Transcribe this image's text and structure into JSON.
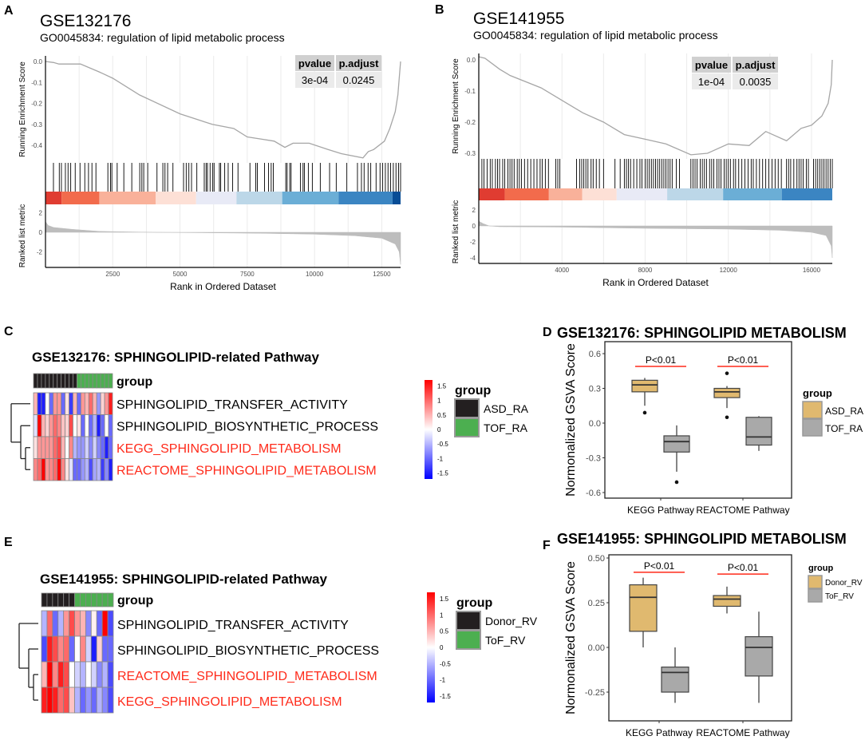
{
  "panel_labels": [
    "A",
    "B",
    "C",
    "D",
    "E",
    "F"
  ],
  "colors": {
    "hit": "#000000",
    "curve": "#a6a6a6",
    "metric_fill": "#bdbdbd",
    "grid": "#ebebeb",
    "highlight": "#ff2a1a",
    "gold": "#e0b96f",
    "gray_box": "#a9a9a9",
    "asd": "#231f20",
    "tof": "#4caf50"
  },
  "chart_data": [
    {
      "type": "line",
      "title": "GSE132176",
      "subtitle": "GO0045834: regulation of lipid metabolic process",
      "ylabel": "Running Enrichment Score",
      "ylabel2": "Ranked list metric",
      "xlabel": "Rank in Ordered Dataset",
      "xlim": [
        0,
        13200
      ],
      "xticks": [
        "2500",
        "5000",
        "7500",
        "10000",
        "12500"
      ],
      "yticks": [
        "0.0",
        "-0.1",
        "-0.2",
        "-0.3",
        "-0.4"
      ],
      "metric_ticks": [
        "2",
        "0",
        "-2"
      ],
      "table": {
        "headers": [
          "pvalue",
          "p.adjust"
        ],
        "values": [
          "3e-04",
          "0.0245"
        ]
      },
      "es_curve": {
        "x": [
          0,
          300,
          500,
          900,
          1300,
          2000,
          2500,
          3500,
          5000,
          6200,
          7000,
          7500,
          8000,
          8500,
          8900,
          9200,
          9800,
          10500,
          11000,
          11800,
          12000,
          12200,
          12600,
          12800,
          13000,
          13100,
          13200
        ],
        "y": [
          0,
          -0.005,
          -0.012,
          -0.012,
          -0.012,
          -0.05,
          -0.08,
          -0.16,
          -0.25,
          -0.3,
          -0.32,
          -0.36,
          -0.37,
          -0.38,
          -0.41,
          -0.39,
          -0.39,
          -0.42,
          -0.44,
          -0.46,
          -0.43,
          -0.42,
          -0.38,
          -0.32,
          -0.24,
          -0.16,
          0.0
        ]
      },
      "hits": [
        296,
        513,
        592,
        740,
        839,
        938,
        1105,
        1283,
        1461,
        1599,
        1727,
        1875,
        2319,
        2418,
        2468,
        2665,
        2912,
        3208,
        3504,
        3583,
        3652,
        3800,
        4145,
        4363,
        4442,
        4541,
        4738,
        5132,
        5231,
        5330,
        5429,
        5626,
        5902,
        5971,
        6021,
        6119,
        6218,
        6267,
        6465,
        6514,
        6662,
        6791,
        6958,
        7156,
        7600,
        7817,
        7876,
        8143,
        8291,
        8390,
        8468,
        8932,
        8982,
        9080,
        9130,
        9475,
        9574,
        9623,
        9771,
        9919,
        10215,
        10561,
        10808,
        11202,
        11597,
        11745,
        11844,
        11992,
        12091,
        12289,
        12436,
        12535,
        12634,
        12733,
        12831,
        12930,
        13029,
        13127,
        13200
      ],
      "metric_curve": {
        "x": [
          0,
          100,
          300,
          1000,
          2000,
          4000,
          6000,
          8000,
          10000,
          11500,
          12500,
          13000,
          13150,
          13200
        ],
        "y": [
          1.1,
          0.7,
          0.5,
          0.3,
          0.1,
          0,
          -0.05,
          -0.1,
          -0.2,
          -0.35,
          -0.6,
          -1.2,
          -2,
          -3.3
        ]
      },
      "color_bands": [
        {
          "end": 600,
          "color": "#e03c31"
        },
        {
          "end": 2000,
          "color": "#f26b4c"
        },
        {
          "end": 4100,
          "color": "#f9b19a"
        },
        {
          "end": 5600,
          "color": "#fde0d6"
        },
        {
          "end": 7100,
          "color": "#e8eaf6"
        },
        {
          "end": 8800,
          "color": "#bcd7e8"
        },
        {
          "end": 10900,
          "color": "#6baed6"
        },
        {
          "end": 12900,
          "color": "#3b85c2"
        },
        {
          "end": 13200,
          "color": "#084d96"
        }
      ]
    },
    {
      "type": "line",
      "title": "GSE141955",
      "subtitle": "GO0045834: regulation of lipid metabolic process",
      "ylabel": "Running Enrichment Score",
      "ylabel2": "Ranked list metric",
      "xlabel": "Rank in Ordered Dataset",
      "xlim": [
        0,
        17000
      ],
      "xticks": [
        "4000",
        "8000",
        "12000",
        "16000"
      ],
      "yticks": [
        "0.0",
        "-0.1",
        "-0.2",
        "-0.3"
      ],
      "metric_ticks": [
        "2",
        "0",
        "-2",
        "-4"
      ],
      "table": {
        "headers": [
          "pvalue",
          "p.adjust"
        ],
        "values": [
          "1e-04",
          "0.0035"
        ]
      },
      "es_curve": {
        "x": [
          0,
          300,
          1000,
          1500,
          3000,
          4000,
          5000,
          6000,
          7000,
          8000,
          9000,
          10200,
          11000,
          12000,
          13000,
          13800,
          14800,
          15500,
          16000,
          16500,
          16800,
          16950,
          17000
        ],
        "y": [
          0.01,
          0.005,
          -0.03,
          -0.05,
          -0.09,
          -0.13,
          -0.17,
          -0.2,
          -0.24,
          -0.255,
          -0.27,
          -0.305,
          -0.3,
          -0.27,
          -0.275,
          -0.23,
          -0.26,
          -0.22,
          -0.21,
          -0.18,
          -0.14,
          -0.08,
          0.0
        ]
      },
      "hits": [
        150,
        250,
        400,
        550,
        650,
        800,
        900,
        1000,
        1150,
        1250,
        1400,
        1500,
        1600,
        1700,
        1850,
        1950,
        2050,
        2200,
        2350,
        2500,
        2650,
        2800,
        2950,
        3050,
        3200,
        3350,
        3700,
        3800,
        3900,
        4700,
        4850,
        4950,
        5050,
        5150,
        5250,
        5400,
        5500,
        5650,
        5800,
        6000,
        6550,
        6800,
        7000,
        7100,
        7200,
        7300,
        7450,
        7600,
        7750,
        7850,
        8000,
        8100,
        8200,
        8300,
        8400,
        8500,
        8600,
        8700,
        8800,
        8900,
        9000,
        9100,
        9200,
        9300,
        9500,
        9650,
        10200,
        10300,
        10400,
        10500,
        10650,
        10750,
        10850,
        10950,
        11100,
        11200,
        11300,
        11450,
        11550,
        11650,
        11800,
        11900,
        12000,
        12100,
        12250,
        12350,
        12500,
        12650,
        12800,
        12950,
        13100,
        13200,
        13350,
        13500,
        13650,
        13800,
        13950,
        14100,
        14250,
        14400,
        14550,
        14800,
        14900,
        15000,
        15150,
        15300,
        15400,
        15500,
        15600,
        15750,
        15850,
        16100,
        16200,
        16300,
        16400,
        16500,
        16600,
        16700,
        16800,
        16900,
        17000
      ],
      "metric_curve": {
        "x": [
          0,
          200,
          500,
          1000,
          4000,
          8000,
          12000,
          14500,
          16000,
          16700,
          16950,
          17000
        ],
        "y": [
          0.6,
          0.3,
          0,
          -0.1,
          -0.15,
          -0.3,
          -0.4,
          -0.55,
          -0.8,
          -1.2,
          -2.5,
          -4
        ]
      },
      "color_bands": [
        {
          "end": 1250,
          "color": "#e03c31"
        },
        {
          "end": 3370,
          "color": "#f26b4c"
        },
        {
          "end": 4970,
          "color": "#f9b19a"
        },
        {
          "end": 6630,
          "color": "#fde0d6"
        },
        {
          "end": 9060,
          "color": "#e8eaf6"
        },
        {
          "end": 11750,
          "color": "#bcd7e8"
        },
        {
          "end": 14570,
          "color": "#6baed6"
        },
        {
          "end": 17000,
          "color": "#3b85c2"
        }
      ]
    },
    {
      "type": "heatmap",
      "title": "GSE132176: SPHINGOLIPID-related Pathway",
      "annotation_label": "group",
      "legend_title": "group",
      "legend": [
        {
          "name": "ASD_RA",
          "color": "#231f20"
        },
        {
          "name": "TOF_RA",
          "color": "#4caf50"
        }
      ],
      "columns_group": [
        "ASD_RA",
        "ASD_RA",
        "ASD_RA",
        "ASD_RA",
        "ASD_RA",
        "ASD_RA",
        "ASD_RA",
        "ASD_RA",
        "ASD_RA",
        "ASD_RA",
        "ASD_RA",
        "TOF_RA",
        "TOF_RA",
        "TOF_RA",
        "TOF_RA",
        "TOF_RA",
        "TOF_RA",
        "TOF_RA",
        "TOF_RA",
        "TOF_RA"
      ],
      "scale_ticks": [
        "1.5",
        "1",
        "0.5",
        "0",
        "-0.5",
        "-1",
        "-1.5"
      ],
      "rows": [
        {
          "name": "SPHINGOLIPID_TRANSFER_ACTIVITY",
          "color": "#000000",
          "values": [
            0.5,
            -1.5,
            -1.5,
            0,
            -1,
            0.7,
            0.7,
            -1,
            0.2,
            -1.3,
            0.5,
            -1,
            0.7,
            0.5,
            1,
            0.5,
            -0.7,
            0.3,
            0.7,
            1.5
          ]
        },
        {
          "name": "SPHINGOLIPID_BIOSYNTHETIC_PROCESS",
          "color": "#000000",
          "values": [
            -0.2,
            1.7,
            0.5,
            0.3,
            0.7,
            1,
            0.8,
            0.4,
            0.3,
            1.2,
            0,
            0.2,
            -1,
            0,
            -1,
            -0.5,
            -1.5,
            -1,
            0,
            -1
          ]
        },
        {
          "name": "KEGG_SPHINGOLIPID_METABOLISM",
          "color": "#ff2a1a",
          "values": [
            0.2,
            0.7,
            0.7,
            0.7,
            0.7,
            1,
            1.2,
            0.5,
            0,
            0.8,
            -0.5,
            -0.7,
            -0.7,
            -0.3,
            -0.8,
            -0.3,
            -0.8,
            -1,
            -1.5,
            -1
          ]
        },
        {
          "name": "REACTOME_SPHINGOLIPID_METABOLISM",
          "color": "#ff2a1a",
          "values": [
            0.8,
            1,
            1.7,
            0.7,
            0.8,
            1,
            1.7,
            0.8,
            0.2,
            -0.2,
            -1,
            -1,
            -0.7,
            -0.5,
            -1.2,
            -0.6,
            -0.5,
            -1.3,
            -0.8,
            -1.5
          ]
        }
      ]
    },
    {
      "type": "box",
      "title": "GSE132176: SPHINGOLIPID METABOLISM",
      "ylabel": "Normonalized GSVA Score",
      "categories": [
        "KEGG Pathway",
        "REACTOME Pathway"
      ],
      "legend_title": "group",
      "groups": [
        {
          "name": "ASD_RA",
          "color": "#e0b96f"
        },
        {
          "name": "TOF_RA",
          "color": "#a9a9a9"
        }
      ],
      "yticks": [
        "0.6",
        "0.3",
        "0.0",
        "-0.3",
        "-0.6"
      ],
      "ylim": [
        -0.65,
        0.65
      ],
      "boxes": [
        [
          {
            "min": 0.15,
            "q1": 0.27,
            "median": 0.33,
            "q3": 0.37,
            "max": 0.39,
            "outliers": [
              0.09
            ]
          },
          {
            "min": -0.42,
            "q1": -0.25,
            "median": -0.16,
            "q3": -0.11,
            "max": -0.02,
            "outliers": [
              -0.51
            ]
          }
        ],
        [
          {
            "min": 0.13,
            "q1": 0.22,
            "median": 0.27,
            "q3": 0.3,
            "max": 0.32,
            "outliers": [
              0.43,
              0.05
            ]
          },
          {
            "min": -0.24,
            "q1": -0.19,
            "median": -0.12,
            "q3": 0.05,
            "max": 0.06,
            "outliers": []
          }
        ]
      ],
      "annotations": [
        {
          "text": "P<0.01",
          "y": 0.49
        },
        {
          "text": "P<0.01",
          "y": 0.49
        }
      ]
    },
    {
      "type": "heatmap",
      "title": "GSE141955: SPHINGOLIPID-related Pathway",
      "annotation_label": "group",
      "legend_title": "group",
      "legend": [
        {
          "name": "Donor_RV",
          "color": "#231f20"
        },
        {
          "name": "ToF_RV",
          "color": "#4caf50"
        }
      ],
      "columns_group": [
        "Donor_RV",
        "Donor_RV",
        "Donor_RV",
        "Donor_RV",
        "Donor_RV",
        "Donor_RV",
        "ToF_RV",
        "ToF_RV",
        "ToF_RV",
        "ToF_RV",
        "ToF_RV",
        "ToF_RV",
        "ToF_RV"
      ],
      "scale_ticks": [
        "1.5",
        "1",
        "0.5",
        "0",
        "-0.5",
        "-1",
        "-1.5"
      ],
      "rows": [
        {
          "name": "SPHINGOLIPID_TRANSFER_ACTIVITY",
          "color": "#000000",
          "values": [
            -0.5,
            1,
            -1,
            -0.5,
            0.7,
            1.2,
            0.7,
            0.5,
            -0.8,
            0.1,
            -1,
            1.7,
            -1.2
          ]
        },
        {
          "name": "SPHINGOLIPID_BIOSYNTHETIC_PROCESS",
          "color": "#000000",
          "values": [
            -1.2,
            1.5,
            1.2,
            0.8,
            1,
            -1,
            0,
            0.8,
            -0.3,
            -1.5,
            0.3,
            -1,
            -1
          ]
        },
        {
          "name": "REACTOME_SPHINGOLIPID_METABOLISM",
          "color": "#ff2a1a",
          "values": [
            0.5,
            1.7,
            0.8,
            1.5,
            1.2,
            0,
            -0.3,
            -0.5,
            0,
            -0.3,
            -0.8,
            -0.5,
            -1.2
          ]
        },
        {
          "name": "KEGG_SPHINGOLIPID_METABOLISM",
          "color": "#ff2a1a",
          "values": [
            1.5,
            1.7,
            1.5,
            1,
            1.2,
            0.4,
            -0.5,
            -1,
            -0.7,
            -1,
            -0.5,
            -0.8,
            -1.2
          ]
        }
      ]
    },
    {
      "type": "box",
      "title": "GSE141955: SPHINGOLIPID METABOLISM",
      "ylabel": "Normonalized GSVA Score",
      "categories": [
        "KEGG Pathway",
        "REACTOME Pathway"
      ],
      "legend_title": "group",
      "groups": [
        {
          "name": "Donor_RV",
          "color": "#e0b96f"
        },
        {
          "name": "ToF_RV",
          "color": "#a9a9a9"
        }
      ],
      "yticks": [
        "0.50",
        "0.25",
        "0.00",
        "-0.25"
      ],
      "ylim": [
        -0.41,
        0.51
      ],
      "boxes": [
        [
          {
            "min": 0.0,
            "q1": 0.09,
            "median": 0.28,
            "q3": 0.35,
            "max": 0.39,
            "outliers": []
          },
          {
            "min": -0.31,
            "q1": -0.25,
            "median": -0.14,
            "q3": -0.11,
            "max": 0.0,
            "outliers": []
          }
        ],
        [
          {
            "min": 0.19,
            "q1": 0.23,
            "median": 0.27,
            "q3": 0.29,
            "max": 0.34,
            "outliers": []
          },
          {
            "min": -0.31,
            "q1": -0.16,
            "median": 0.0,
            "q3": 0.06,
            "max": 0.2,
            "outliers": []
          }
        ]
      ],
      "annotations": [
        {
          "text": "P<0.01",
          "y": 0.42
        },
        {
          "text": "P<0.01",
          "y": 0.41
        }
      ]
    }
  ]
}
